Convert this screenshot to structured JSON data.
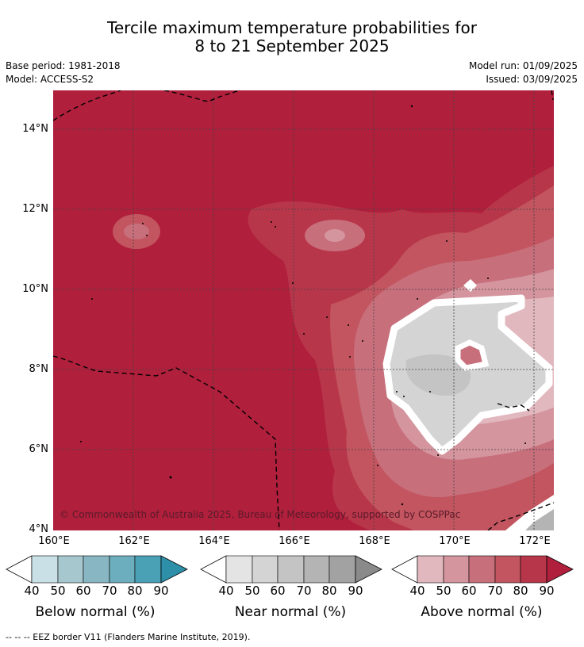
{
  "title_line1": "Tercile maximum temperature probabilities for",
  "title_line2": "8 to 21 September 2025",
  "base_period": "Base period: 1981-2018",
  "model": "Model: ACCESS-S2",
  "model_run": "Model run: 01/09/2025",
  "issued": "Issued: 03/09/2025",
  "map": {
    "y_ticks": [
      "14°N",
      "12°N",
      "10°N",
      "8°N",
      "6°N",
      "4°N"
    ],
    "x_ticks": [
      "160°E",
      "162°E",
      "164°E",
      "166°E",
      "168°E",
      "170°E",
      "172°E"
    ],
    "copyright": "© Commonwealth of Australia 2025, Bureau of Meteorology, supported by COSPPac"
  },
  "colorbars": [
    {
      "label": "Below normal (%)",
      "ticks": [
        "40",
        "50",
        "60",
        "70",
        "80",
        "90"
      ],
      "colors": [
        "#c8e0e6",
        "#a6c7ce",
        "#88b6c2",
        "#6caebd",
        "#4aa0b5",
        "#2e8fa8"
      ]
    },
    {
      "label": "Near normal (%)",
      "ticks": [
        "40",
        "50",
        "60",
        "70",
        "80",
        "90"
      ],
      "colors": [
        "#e4e4e4",
        "#d4d4d4",
        "#c4c4c4",
        "#b4b4b4",
        "#a2a2a2",
        "#8a8a8a"
      ]
    },
    {
      "label": "Above normal (%)",
      "ticks": [
        "40",
        "50",
        "60",
        "70",
        "80",
        "90"
      ],
      "colors": [
        "#e2b8bf",
        "#d4959e",
        "#c86f7c",
        "#c2555f",
        "#b8364a",
        "#b01f3c"
      ]
    }
  ],
  "footer": "--  --  -- EEZ border V11 (Flanders Marine Institute, 2019)."
}
